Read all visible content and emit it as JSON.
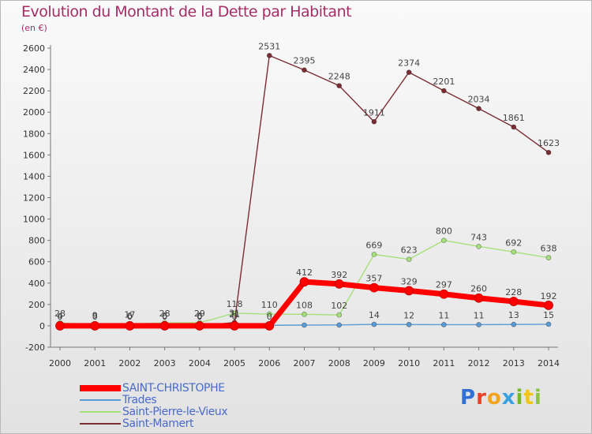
{
  "chart_data": {
    "type": "line",
    "title": "Evolution du Montant de la Dette par Habitant",
    "subtitle": "(en €)",
    "x": [
      2000,
      2001,
      2002,
      2003,
      2004,
      2005,
      2006,
      2007,
      2008,
      2009,
      2010,
      2011,
      2012,
      2013,
      2014
    ],
    "ylim": [
      -200,
      2600
    ],
    "yticks": [
      -200,
      0,
      200,
      400,
      600,
      800,
      1000,
      1200,
      1400,
      1600,
      1800,
      2000,
      2200,
      2400,
      2600
    ],
    "grid": false,
    "legend": "bottom-left",
    "series": [
      {
        "name": "SAINT-CHRISTOPHE",
        "color": "#ff0000",
        "values": [
          0,
          0,
          0,
          0,
          0,
          0,
          0,
          412,
          392,
          357,
          329,
          297,
          260,
          228,
          192
        ],
        "labels": [
          "0",
          "0",
          "0",
          "0",
          "0",
          "0",
          "0",
          "412",
          "392",
          "357",
          "329",
          "297",
          "260",
          "228",
          "192"
        ]
      },
      {
        "name": "Trades",
        "color": "#5b9bd5",
        "values": [
          4,
          9,
          6,
          6,
          6,
          21,
          5,
          7,
          8,
          14,
          12,
          11,
          11,
          13,
          15
        ],
        "labels": [
          "4",
          "9",
          "6",
          "6",
          "6",
          "21",
          "",
          "",
          "",
          "14",
          "12",
          "11",
          "11",
          "13",
          "15"
        ]
      },
      {
        "name": "Saint-Pierre-le-Vieux",
        "color": "#a6e07c",
        "values": [
          28,
          9,
          17,
          28,
          29,
          118,
          110,
          108,
          102,
          669,
          623,
          800,
          743,
          692,
          638
        ],
        "labels": [
          "28",
          "9",
          "17",
          "28",
          "29",
          "118",
          "110",
          "108",
          "102",
          "669",
          "623",
          "800",
          "743",
          "692",
          "638"
        ]
      },
      {
        "name": "Saint-Mamert",
        "color": "#7b2d34",
        "values": [
          10,
          0,
          0,
          0,
          0,
          31,
          2531,
          2395,
          2248,
          1911,
          2374,
          2201,
          2034,
          1861,
          1623
        ],
        "labels": [
          "",
          "",
          "",
          "",
          "0",
          "31",
          "2531",
          "2395",
          "2248",
          "1911",
          "2374",
          "2201",
          "2034",
          "1861",
          "1623"
        ]
      }
    ]
  },
  "logo": {
    "p": "P",
    "r": "r",
    "o": "o",
    "x": "x",
    "i": "i",
    "t": "t",
    "i2": "i"
  }
}
